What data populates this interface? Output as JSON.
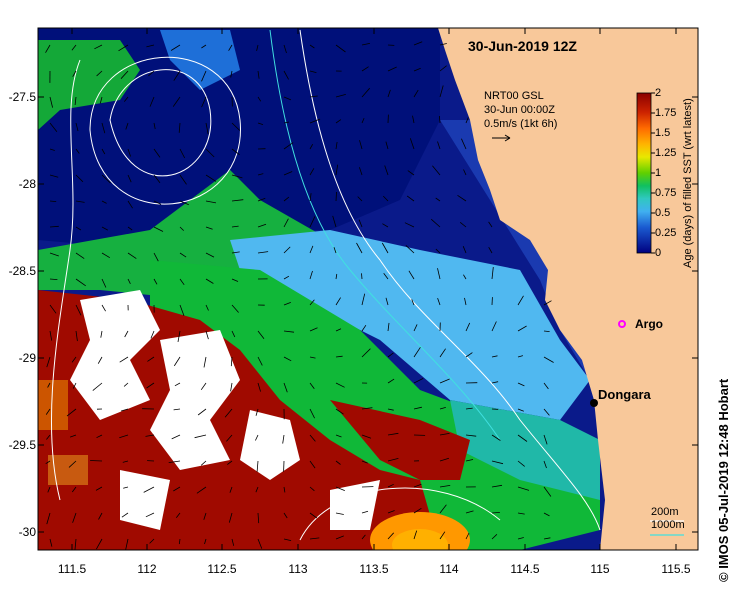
{
  "title": "30-Jun-2019 12Z",
  "credit": "© IMOS 05-Jul-2019 12:48 Hobart",
  "current_legend": {
    "source": "NRT00 GSL",
    "time": "30-Jun 00:00Z",
    "scale": "0.5m/s (1kt 6h)"
  },
  "colorbar": {
    "title": "Age (days) of filled SST (wrt latest)",
    "ticks": [
      "2",
      "1.75",
      "1.5",
      "1.25",
      "1",
      "0.75",
      "0.5",
      "0.25",
      "0"
    ],
    "colors": [
      "#8b0000",
      "#c83200",
      "#ff6a00",
      "#ffb000",
      "#e0e000",
      "#70d000",
      "#10c040",
      "#30c8a0",
      "#40b8f0",
      "#1e6fd8",
      "#0a2aa8",
      "#000080"
    ]
  },
  "places": [
    {
      "name": "Dongara",
      "lon": 114.93,
      "lat": -29.25,
      "marker": "dot",
      "color": "#000000"
    },
    {
      "name": "Argo",
      "lon": 115.1,
      "lat": -28.93,
      "marker": "circle",
      "color": "#ff00ff"
    }
  ],
  "isobaths": [
    "200m",
    "1000m"
  ],
  "isobath_colors": {
    "200m": "#ffffff",
    "1000m": "#40e0e0"
  },
  "axes": {
    "lat_ticks": [
      "-27.5",
      "-28",
      "-28.5",
      "-29",
      "-29.5",
      "-30"
    ],
    "lon_ticks": [
      "111.5",
      "112",
      "112.5",
      "113",
      "113.5",
      "114",
      "114.5",
      "115",
      "115.5"
    ]
  },
  "colors": {
    "land": "#f8c89a",
    "ocean_fresh": "#00107a",
    "ocean_blue": "#1e6fd8",
    "ocean_lightblue": "#58b8f0",
    "ocean_teal": "#20b8a8",
    "ocean_green": "#10c040",
    "old_red": "#a00a00",
    "cloud": "#ffffff",
    "orange": "#ff9800"
  }
}
